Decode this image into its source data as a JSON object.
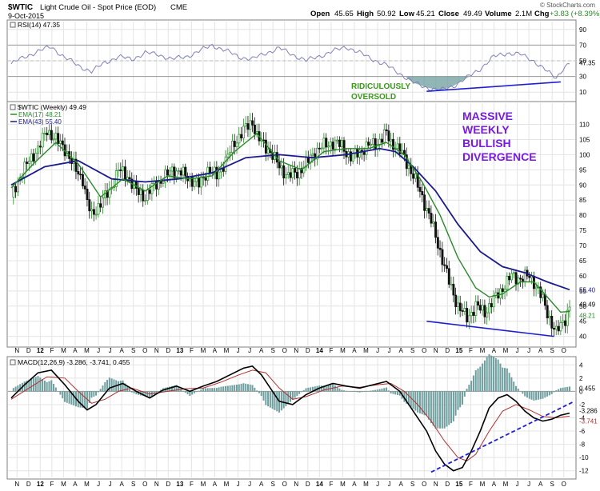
{
  "header": {
    "symbol": "$WTIC",
    "description": "Light Crude Oil - Spot Price (EOD)",
    "exchange": "CME",
    "date": "9-Oct-2015",
    "open_label": "Open",
    "open": "45.65",
    "high_label": "High",
    "high": "50.92",
    "low_label": "Low",
    "low": "45.21",
    "close_label": "Close",
    "close": "49.49",
    "volume_label": "Volume",
    "volume": "2.1M",
    "chg_label": "Chg",
    "chg": "+3.83 (+8.39%)",
    "watermark": "© StockCharts.com"
  },
  "colors": {
    "price_up": "#2a8a2a",
    "price_down": "#111111",
    "ema_fast": "#2a8a2a",
    "ema_slow": "#1a1a8c",
    "rsi_line": "#8080b8",
    "rsi_fill": "#6e9e9e",
    "macd_line": "#000000",
    "signal_line": "#b03030",
    "histogram": "#6e9e9e",
    "annotation_green": "#3a9a1a",
    "annotation_purple": "#7a1ae0",
    "trendline": "#2020d0"
  },
  "annotations": {
    "oversold": [
      "RIDICULOUSLY",
      "OVERSOLD"
    ],
    "divergence": [
      "MASSIVE",
      "WEEKLY",
      "BULLISH",
      "DIVERGENCE"
    ]
  },
  "x_months": [
    "N",
    "D",
    "12",
    "F",
    "M",
    "A",
    "M",
    "J",
    "J",
    "A",
    "S",
    "O",
    "N",
    "D",
    "13",
    "F",
    "M",
    "A",
    "M",
    "J",
    "J",
    "A",
    "S",
    "O",
    "N",
    "D",
    "14",
    "F",
    "M",
    "A",
    "M",
    "J",
    "J",
    "A",
    "S",
    "O",
    "N",
    "D",
    "15",
    "F",
    "M",
    "A",
    "M",
    "J",
    "J",
    "A",
    "S",
    "O"
  ],
  "chart_data": [
    {
      "type": "line",
      "panel": "RSI",
      "legend": "RSI(14) 47.35",
      "ylim": [
        0,
        100
      ],
      "y_ticks": [
        10,
        30,
        50,
        70,
        90
      ],
      "last_label": "47.35",
      "points": [
        [
          0,
          46
        ],
        [
          6,
          55
        ],
        [
          12,
          62
        ],
        [
          18,
          68
        ],
        [
          24,
          54
        ],
        [
          30,
          44
        ],
        [
          36,
          36
        ],
        [
          42,
          48
        ],
        [
          48,
          55
        ],
        [
          54,
          52
        ],
        [
          60,
          60
        ],
        [
          66,
          58
        ],
        [
          72,
          52
        ],
        [
          78,
          55
        ],
        [
          84,
          62
        ],
        [
          90,
          70
        ],
        [
          96,
          63
        ],
        [
          102,
          55
        ],
        [
          108,
          52
        ],
        [
          114,
          60
        ],
        [
          120,
          66
        ],
        [
          126,
          58
        ],
        [
          132,
          50
        ],
        [
          138,
          56
        ],
        [
          144,
          62
        ],
        [
          150,
          68
        ],
        [
          156,
          60
        ],
        [
          162,
          52
        ],
        [
          168,
          44
        ],
        [
          174,
          34
        ],
        [
          180,
          22
        ],
        [
          186,
          16
        ],
        [
          192,
          12
        ],
        [
          198,
          18
        ],
        [
          204,
          28
        ],
        [
          210,
          40
        ],
        [
          216,
          55
        ],
        [
          222,
          60
        ],
        [
          228,
          58
        ],
        [
          234,
          50
        ],
        [
          240,
          36
        ],
        [
          244,
          28
        ],
        [
          247,
          40
        ],
        [
          250,
          47
        ]
      ]
    },
    {
      "type": "candlestick",
      "panel": "Price",
      "legend": [
        "$WTIC (Weekly) 49.49",
        "EMA(17) 48.21",
        "EMA(43) 55.40"
      ],
      "ylim": [
        37,
        117
      ],
      "y_ticks": [
        40,
        45,
        50,
        55,
        60,
        65,
        70,
        75,
        80,
        85,
        90,
        95,
        100,
        105,
        110
      ],
      "last_labels": [
        "55.40",
        "49.49",
        "48.21"
      ],
      "close_points": [
        [
          0,
          86
        ],
        [
          4,
          93
        ],
        [
          8,
          98
        ],
        [
          12,
          102
        ],
        [
          16,
          108
        ],
        [
          20,
          105
        ],
        [
          24,
          102
        ],
        [
          28,
          96
        ],
        [
          32,
          92
        ],
        [
          34,
          84
        ],
        [
          36,
          80
        ],
        [
          40,
          84
        ],
        [
          44,
          88
        ],
        [
          48,
          95
        ],
        [
          52,
          93
        ],
        [
          56,
          88
        ],
        [
          60,
          86
        ],
        [
          64,
          90
        ],
        [
          68,
          92
        ],
        [
          72,
          95
        ],
        [
          76,
          94
        ],
        [
          80,
          92
        ],
        [
          84,
          90
        ],
        [
          88,
          95
        ],
        [
          92,
          93
        ],
        [
          96,
          98
        ],
        [
          100,
          104
        ],
        [
          104,
          108
        ],
        [
          108,
          111
        ],
        [
          110,
          106
        ],
        [
          112,
          104
        ],
        [
          116,
          101
        ],
        [
          120,
          96
        ],
        [
          124,
          93
        ],
        [
          128,
          94
        ],
        [
          132,
          97
        ],
        [
          136,
          101
        ],
        [
          140,
          103
        ],
        [
          144,
          104
        ],
        [
          148,
          103
        ],
        [
          152,
          99
        ],
        [
          156,
          101
        ],
        [
          160,
          103
        ],
        [
          164,
          104
        ],
        [
          168,
          107
        ],
        [
          170,
          104
        ],
        [
          172,
          103
        ],
        [
          176,
          99
        ],
        [
          180,
          93
        ],
        [
          184,
          86
        ],
        [
          188,
          78
        ],
        [
          192,
          68
        ],
        [
          196,
          58
        ],
        [
          200,
          50
        ],
        [
          204,
          46
        ],
        [
          208,
          50
        ],
        [
          212,
          48
        ],
        [
          216,
          52
        ],
        [
          220,
          56
        ],
        [
          224,
          60
        ],
        [
          228,
          59
        ],
        [
          232,
          60
        ],
        [
          234,
          58
        ],
        [
          236,
          55
        ],
        [
          238,
          52
        ],
        [
          240,
          48
        ],
        [
          242,
          44
        ],
        [
          244,
          41
        ],
        [
          246,
          44
        ],
        [
          248,
          46
        ],
        [
          250,
          49.49
        ]
      ],
      "ema_fast_points": [
        [
          0,
          89
        ],
        [
          10,
          97
        ],
        [
          20,
          104
        ],
        [
          30,
          97
        ],
        [
          40,
          86
        ],
        [
          50,
          92
        ],
        [
          60,
          88
        ],
        [
          70,
          93
        ],
        [
          80,
          92
        ],
        [
          90,
          93
        ],
        [
          100,
          101
        ],
        [
          110,
          107
        ],
        [
          120,
          98
        ],
        [
          130,
          95
        ],
        [
          140,
          101
        ],
        [
          150,
          102
        ],
        [
          160,
          102
        ],
        [
          168,
          104
        ],
        [
          176,
          100
        ],
        [
          184,
          91
        ],
        [
          192,
          80
        ],
        [
          200,
          66
        ],
        [
          208,
          56
        ],
        [
          214,
          53
        ],
        [
          220,
          54
        ],
        [
          228,
          58
        ],
        [
          234,
          58
        ],
        [
          240,
          53
        ],
        [
          246,
          48
        ],
        [
          250,
          48.21
        ]
      ],
      "ema_slow_points": [
        [
          0,
          90
        ],
        [
          15,
          96
        ],
        [
          30,
          98
        ],
        [
          45,
          92
        ],
        [
          60,
          91
        ],
        [
          75,
          92
        ],
        [
          90,
          94
        ],
        [
          105,
          99
        ],
        [
          120,
          100
        ],
        [
          135,
          99
        ],
        [
          150,
          100
        ],
        [
          165,
          102
        ],
        [
          172,
          101
        ],
        [
          180,
          96
        ],
        [
          190,
          88
        ],
        [
          200,
          77
        ],
        [
          210,
          68
        ],
        [
          220,
          63
        ],
        [
          230,
          61
        ],
        [
          240,
          58
        ],
        [
          250,
          55.4
        ]
      ],
      "trendline": {
        "from": [
          186,
          45
        ],
        "to": [
          243,
          40
        ]
      }
    },
    {
      "type": "line",
      "panel": "MACD",
      "legend": "MACD(12,26,9) -3.286, -3.741, 0.455",
      "ylim": [
        -13,
        5
      ],
      "y_ticks": [
        4,
        2,
        0,
        -2,
        -4,
        -6,
        -8,
        -10,
        -12
      ],
      "last_labels": [
        "0.455",
        "-3.286",
        "-3.741"
      ],
      "macd_points": [
        [
          0,
          -1
        ],
        [
          6,
          1
        ],
        [
          12,
          2.8
        ],
        [
          18,
          3.2
        ],
        [
          24,
          1
        ],
        [
          30,
          -1.5
        ],
        [
          34,
          -2.8
        ],
        [
          38,
          -2
        ],
        [
          44,
          0.5
        ],
        [
          50,
          1.2
        ],
        [
          56,
          0
        ],
        [
          62,
          -1
        ],
        [
          68,
          0.2
        ],
        [
          74,
          0.8
        ],
        [
          80,
          0
        ],
        [
          86,
          0.8
        ],
        [
          92,
          1.5
        ],
        [
          98,
          2.5
        ],
        [
          104,
          3.5
        ],
        [
          108,
          3.8
        ],
        [
          112,
          2.5
        ],
        [
          116,
          0.5
        ],
        [
          120,
          -1.5
        ],
        [
          126,
          -2
        ],
        [
          132,
          -0.5
        ],
        [
          138,
          0.5
        ],
        [
          144,
          1.2
        ],
        [
          150,
          0.8
        ],
        [
          156,
          0.5
        ],
        [
          162,
          1
        ],
        [
          168,
          1.5
        ],
        [
          174,
          0
        ],
        [
          180,
          -3
        ],
        [
          186,
          -6
        ],
        [
          190,
          -9
        ],
        [
          194,
          -11
        ],
        [
          198,
          -12
        ],
        [
          202,
          -11.5
        ],
        [
          206,
          -9
        ],
        [
          210,
          -6
        ],
        [
          214,
          -2.5
        ],
        [
          218,
          -1
        ],
        [
          222,
          -0.5
        ],
        [
          226,
          -1.5
        ],
        [
          230,
          -3
        ],
        [
          234,
          -4
        ],
        [
          238,
          -4.5
        ],
        [
          242,
          -4.2
        ],
        [
          246,
          -3.6
        ],
        [
          250,
          -3.286
        ]
      ],
      "signal_points": [
        [
          0,
          -1.2
        ],
        [
          8,
          0.5
        ],
        [
          16,
          2.2
        ],
        [
          24,
          2
        ],
        [
          30,
          0
        ],
        [
          36,
          -1.8
        ],
        [
          42,
          -1.2
        ],
        [
          48,
          0
        ],
        [
          54,
          0.5
        ],
        [
          62,
          -0.4
        ],
        [
          70,
          0
        ],
        [
          78,
          0.4
        ],
        [
          86,
          0.5
        ],
        [
          94,
          1.4
        ],
        [
          102,
          2.5
        ],
        [
          108,
          3.2
        ],
        [
          114,
          2.8
        ],
        [
          120,
          0.5
        ],
        [
          126,
          -1.2
        ],
        [
          132,
          -0.8
        ],
        [
          140,
          0.2
        ],
        [
          148,
          0.8
        ],
        [
          156,
          0.6
        ],
        [
          164,
          1
        ],
        [
          170,
          1.2
        ],
        [
          176,
          0
        ],
        [
          182,
          -2
        ],
        [
          188,
          -4.5
        ],
        [
          194,
          -7.5
        ],
        [
          200,
          -10
        ],
        [
          204,
          -10.5
        ],
        [
          208,
          -9.5
        ],
        [
          214,
          -6
        ],
        [
          220,
          -3
        ],
        [
          226,
          -2
        ],
        [
          232,
          -2.8
        ],
        [
          238,
          -3.8
        ],
        [
          244,
          -4
        ],
        [
          250,
          -3.741
        ]
      ],
      "trendline": {
        "from": [
          188,
          -12.2
        ],
        "to": [
          250,
          -1.5
        ]
      }
    }
  ]
}
